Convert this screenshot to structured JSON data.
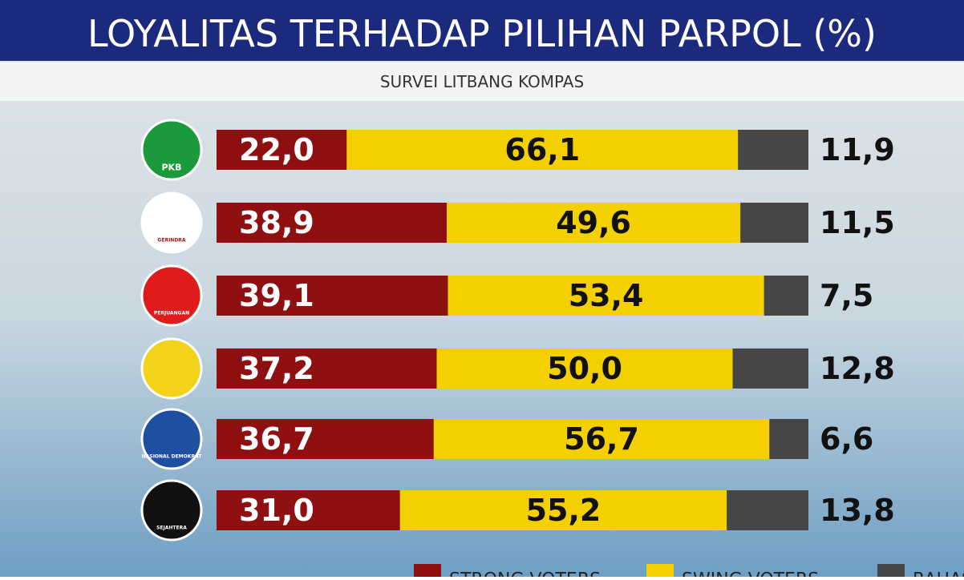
{
  "chart_data": {
    "type": "stacked-bar-horizontal",
    "title": "LOYALITAS TERHADAP PILIHAN PARPOL (%)",
    "subtitle": "SURVEI LITBANG KOMPAS",
    "categories": [
      "PKB",
      "GERINDRA",
      "PERJUANGAN",
      null,
      "NASIONAL DEMOKRAT",
      "SEJAHTERA"
    ],
    "xlim": [
      0,
      100
    ],
    "series": [
      {
        "name": "STRONG VOTERS",
        "color": "#8e1010",
        "values": [
          22.0,
          38.9,
          39.1,
          37.2,
          36.7,
          31.0
        ],
        "value_labels": [
          "22,0",
          "38,9",
          "39,1",
          "37,2",
          "36,7",
          "31,0"
        ]
      },
      {
        "name": "SWING VOTERS",
        "color": "#f4d000",
        "values": [
          66.1,
          49.6,
          53.4,
          50.0,
          56.7,
          55.2
        ],
        "value_labels": [
          "66,1",
          "49,6",
          "53,4",
          "50,0",
          "56,7",
          "55,2"
        ]
      },
      {
        "name": "RAHASIA",
        "color": "#464646",
        "values": [
          11.9,
          11.5,
          7.5,
          12.8,
          6.6,
          13.8
        ],
        "value_labels": [
          "11,9",
          "11,5",
          "7,5",
          "12,8",
          "6,6",
          "13,8"
        ]
      }
    ]
  }
}
